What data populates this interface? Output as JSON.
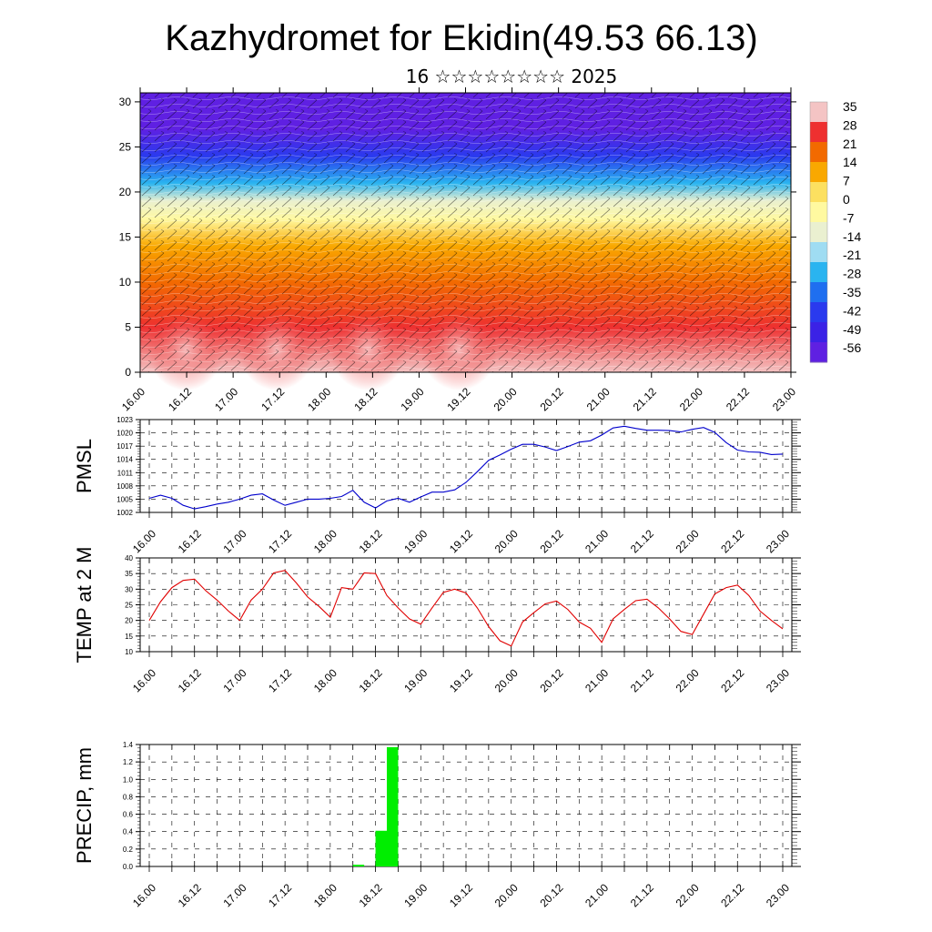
{
  "header": {
    "title": "Kazhydromet for Ekidin(49.53 66.13)",
    "subtitle": "16 ☆☆☆☆☆☆☆☆ 2025"
  },
  "chart_data": [
    {
      "name": "cross-section",
      "type": "heatmap",
      "ylim": [
        0,
        31
      ],
      "yticks": [
        "0",
        "5",
        "10",
        "15",
        "20",
        "25",
        "30"
      ],
      "xticks": [
        "16.00",
        "16.12",
        "17.00",
        "17.12",
        "18.00",
        "18.12",
        "19.00",
        "19.12",
        "20.00",
        "20.12",
        "21.00",
        "21.12",
        "22.00",
        "22.12",
        "23.00"
      ],
      "colorbar": {
        "labels": [
          "35",
          "28",
          "21",
          "14",
          "7",
          "0",
          "-7",
          "-14",
          "-21",
          "-28",
          "-35",
          "-42",
          "-49",
          "-56"
        ],
        "colors": [
          "#f4c4c4",
          "#ee3030",
          "#f26a00",
          "#f9a800",
          "#fce060",
          "#fff9a0",
          "#eaf0d0",
          "#9fdcf2",
          "#2ab4f0",
          "#1f6ff0",
          "#2a3aee",
          "#3b22e6",
          "#5f20e2"
        ]
      },
      "temperature_profile": {
        "levels": [
          0,
          5,
          10,
          14,
          17,
          19,
          21,
          24,
          27,
          31
        ],
        "values": [
          30,
          24,
          18,
          8,
          -6,
          -16,
          -30,
          -44,
          -54,
          -60
        ]
      }
    },
    {
      "name": "pmsl",
      "type": "line",
      "ylabel": "PMSL",
      "ylim": [
        1002,
        1023
      ],
      "yticks": [
        "1002",
        "1005",
        "1008",
        "1011",
        "1014",
        "1017",
        "1020",
        "1023"
      ],
      "xticks": [
        "16.00",
        "16.12",
        "17.00",
        "17.12",
        "18.00",
        "18.12",
        "19.00",
        "19.12",
        "20.00",
        "20.12",
        "21.00",
        "21.12",
        "22.00",
        "22.12",
        "23.00"
      ],
      "color": "#0000cc",
      "series": [
        {
          "x": [
            0,
            3,
            6,
            9,
            12,
            15,
            18,
            21,
            24,
            27,
            30,
            33,
            36,
            39,
            42,
            45,
            48,
            51,
            54,
            57,
            60,
            63,
            66,
            69,
            72,
            75,
            78,
            81,
            84,
            87,
            90,
            93,
            96,
            99,
            102,
            105,
            108,
            111,
            114,
            117,
            120,
            123,
            126,
            129,
            132,
            135,
            138,
            141,
            144,
            147,
            150,
            153,
            156,
            159,
            162,
            165,
            168
          ],
          "values": [
            1005.2,
            1005.9,
            1005.2,
            1003.6,
            1002.8,
            1003.3,
            1003.9,
            1004.3,
            1005.0,
            1005.9,
            1006.2,
            1004.8,
            1003.6,
            1004.3,
            1005.0,
            1005.0,
            1005.2,
            1005.6,
            1007.0,
            1004.3,
            1003.0,
            1004.6,
            1005.2,
            1004.3,
            1005.5,
            1006.6,
            1006.6,
            1007.1,
            1008.8,
            1011.2,
            1013.8,
            1015.0,
            1016.3,
            1017.4,
            1017.4,
            1016.8,
            1016.0,
            1016.9,
            1017.9,
            1018.2,
            1019.5,
            1021.1,
            1021.5,
            1021.0,
            1020.6,
            1020.6,
            1020.5,
            1020.2,
            1020.8,
            1021.2,
            1020.1,
            1017.8,
            1016.1,
            1015.7,
            1015.6,
            1015.1,
            1015.2
          ]
        }
      ]
    },
    {
      "name": "temp",
      "type": "line",
      "ylabel": "TEMP at 2 M",
      "ylim": [
        10,
        40
      ],
      "yticks": [
        "10",
        "15",
        "20",
        "25",
        "30",
        "35",
        "40"
      ],
      "xticks": [
        "16.00",
        "16.12",
        "17.00",
        "17.12",
        "18.00",
        "18.12",
        "19.00",
        "19.12",
        "20.00",
        "20.12",
        "21.00",
        "21.12",
        "22.00",
        "22.12",
        "23.00"
      ],
      "color": "#e00000",
      "series": [
        {
          "x": [
            0,
            3,
            6,
            9,
            12,
            15,
            18,
            21,
            24,
            27,
            30,
            33,
            36,
            39,
            42,
            45,
            48,
            51,
            54,
            57,
            60,
            63,
            66,
            69,
            72,
            75,
            78,
            81,
            84,
            87,
            90,
            93,
            96,
            99,
            102,
            105,
            108,
            111,
            114,
            117,
            120,
            123,
            126,
            129,
            132,
            135,
            138,
            141,
            144,
            147,
            150,
            153,
            156,
            159,
            162,
            165,
            168
          ],
          "values": [
            20,
            26,
            30.5,
            32.8,
            33.2,
            29.5,
            26.5,
            23,
            20,
            26.5,
            30,
            35.2,
            36,
            32,
            27.5,
            24.5,
            21,
            30.5,
            30,
            35.2,
            35,
            28,
            24,
            20.5,
            18.8,
            24,
            29,
            30,
            28.8,
            24,
            18,
            13.5,
            11.8,
            19.5,
            22.5,
            25.3,
            26.2,
            23.5,
            19.5,
            17.5,
            13,
            20.5,
            23.5,
            26.3,
            26.8,
            24,
            20.5,
            16.5,
            15.5,
            22,
            28.5,
            30.5,
            31.3,
            28,
            23,
            20,
            17.3
          ]
        }
      ]
    },
    {
      "name": "precip",
      "type": "bar",
      "ylabel": "PRECIP, mm",
      "ylim": [
        0,
        1.4
      ],
      "yticks": [
        "0.0",
        "0.2",
        "0.4",
        "0.6",
        "0.8",
        "1.0",
        "1.2",
        "1.4"
      ],
      "xticks": [
        "16.00",
        "16.12",
        "17.00",
        "17.12",
        "18.00",
        "18.12",
        "19.00",
        "19.12",
        "20.00",
        "20.12",
        "21.00",
        "21.12",
        "22.00",
        "22.12",
        "23.00"
      ],
      "color": "#00ee00",
      "bars": [
        {
          "x": 54,
          "value": 0.02
        },
        {
          "x": 60,
          "value": 0.41
        },
        {
          "x": 63,
          "value": 1.37
        }
      ]
    }
  ]
}
